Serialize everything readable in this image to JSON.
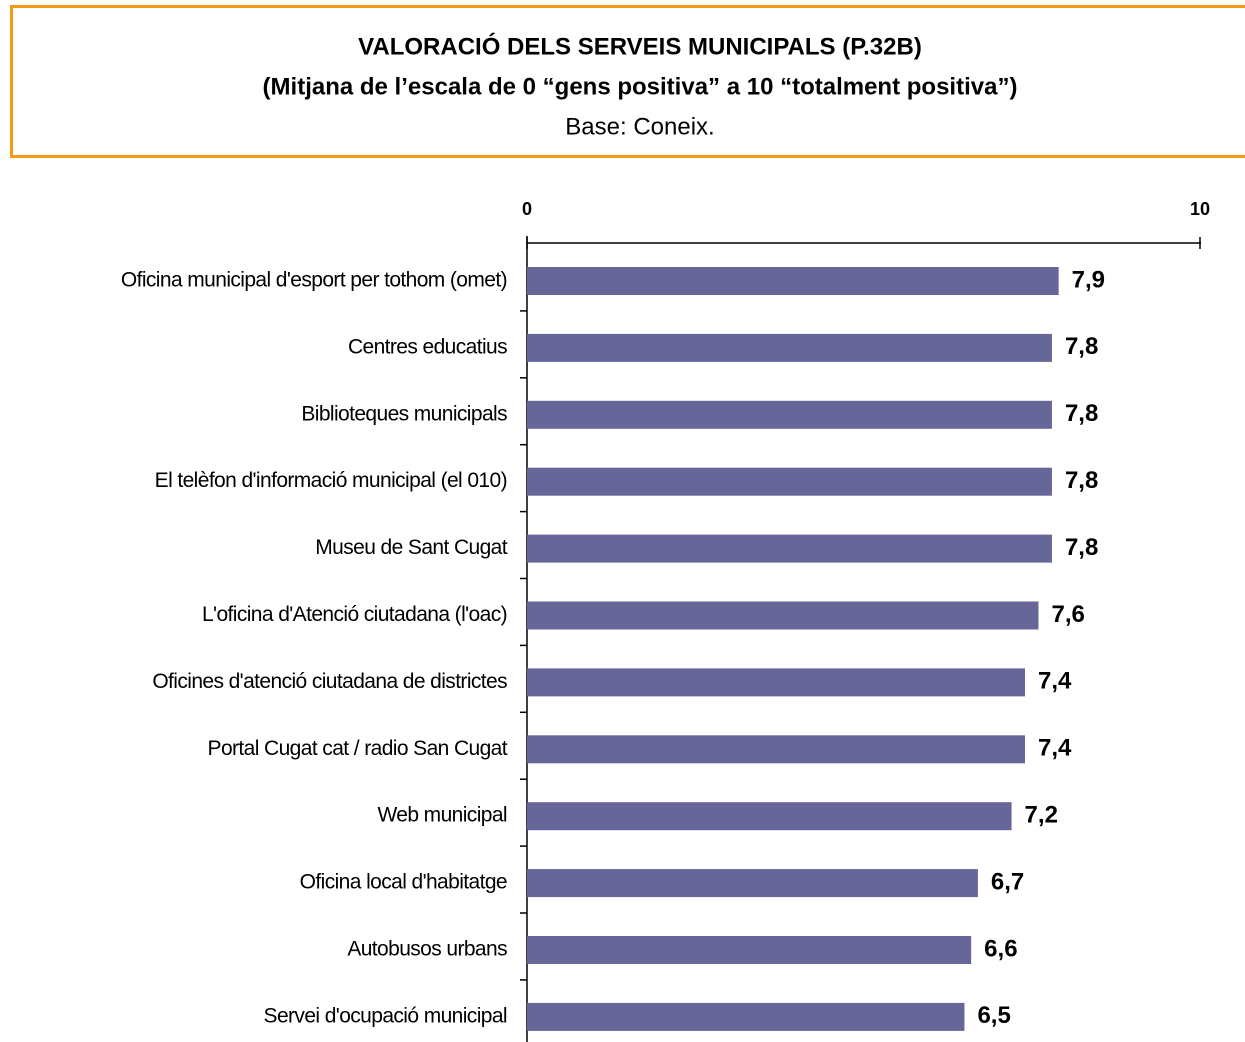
{
  "chart_data": {
    "type": "barh",
    "title": "VALORACIÓ DELS SERVEIS MUNICIPALS (P.32B)",
    "subtitle": "(Mitjana de l’escala de 0 “gens positiva” a 10 “totalment positiva”)",
    "note": "Base: Coneix.",
    "categories": [
      "Oficina municipal d'esport per tothom (omet)",
      "Centres educatius",
      "Biblioteques municipals",
      "El telèfon d'informació municipal (el 010)",
      "Museu de Sant Cugat",
      "L'oficina d'Atenció ciutadana (l'oac)",
      "Oficines d'atenció ciutadana de districtes",
      "Portal Cugat cat / radio San Cugat",
      "Web municipal",
      "Oficina local d'habitatge",
      "Autobusos urbans",
      "Servei d'ocupació municipal"
    ],
    "values": [
      7.9,
      7.8,
      7.8,
      7.8,
      7.8,
      7.6,
      7.4,
      7.4,
      7.2,
      6.7,
      6.6,
      6.5
    ],
    "value_labels": [
      "7,9",
      "7,8",
      "7,8",
      "7,8",
      "7,8",
      "7,6",
      "7,4",
      "7,4",
      "7,2",
      "6,7",
      "6,6",
      "6,5"
    ],
    "color": "#666699",
    "xlim": [
      0,
      10
    ],
    "xticks": [
      0,
      10
    ]
  }
}
